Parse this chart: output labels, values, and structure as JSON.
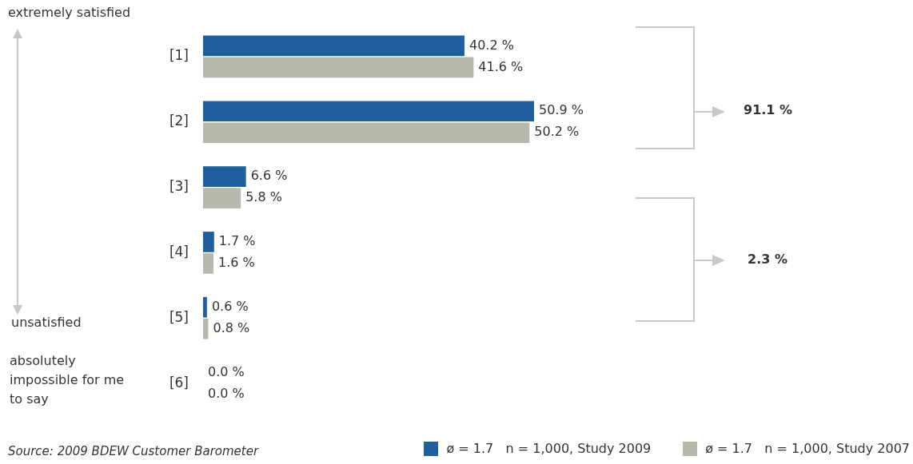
{
  "chart_data": {
    "type": "bar",
    "orientation": "horizontal",
    "categories": [
      "[1]",
      "[2]",
      "[3]",
      "[4]",
      "[5]",
      "[6]"
    ],
    "series": [
      {
        "name": "ø = 1.7   n = 1,000, Study 2009",
        "color": "#1f5f9e",
        "values": [
          40.2,
          50.9,
          6.6,
          1.7,
          0.6,
          0.0
        ],
        "value_labels": [
          "40.2 %",
          "50.9 %",
          "6.6 %",
          "1.7 %",
          "0.6 %",
          "0.0 %"
        ]
      },
      {
        "name": "ø = 1.7   n = 1,000, Study 2007",
        "color": "#b9b8ac",
        "values": [
          41.6,
          50.2,
          5.8,
          1.6,
          0.8,
          0.0
        ],
        "value_labels": [
          "41.6 %",
          "50.2 %",
          "5.8 %",
          "1.6 %",
          "0.8 %",
          "0.0 %"
        ]
      }
    ],
    "legend": "bottom right",
    "annotations": [
      "extremely satisfied",
      "unsatisfied",
      "absolutely impossible for me to say",
      "91.1 %",
      "2.3 %",
      "Source: 2009 BDEW Customer Barometer"
    ]
  }
}
